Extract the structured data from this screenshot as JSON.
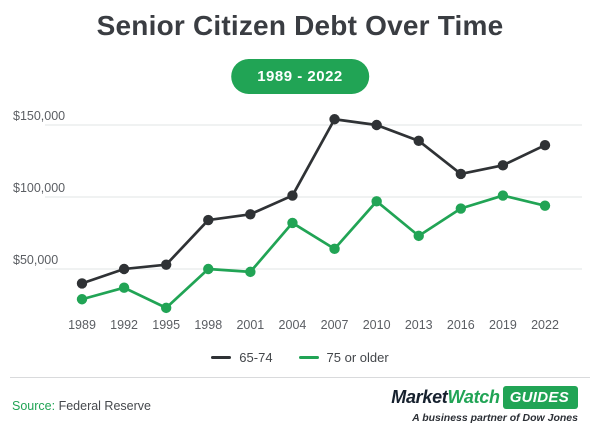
{
  "header": {
    "title": "Senior Citizen Debt Over Time",
    "badge": "1989 - 2022"
  },
  "chart_data": {
    "type": "line",
    "title": "Senior Citizen Debt Over Time",
    "subtitle": "1989 - 2022",
    "categories": [
      "1989",
      "1992",
      "1995",
      "1998",
      "2001",
      "2004",
      "2007",
      "2010",
      "2013",
      "2016",
      "2019",
      "2022"
    ],
    "series": [
      {
        "name": "65-74",
        "color": "#2f3235",
        "values": [
          40000,
          50000,
          53000,
          84000,
          88000,
          101000,
          154000,
          150000,
          139000,
          116000,
          122000,
          136000
        ]
      },
      {
        "name": "75 or older",
        "color": "#21a455",
        "values": [
          29000,
          37000,
          23000,
          50000,
          48000,
          82000,
          64000,
          97000,
          73000,
          92000,
          101000,
          94000
        ]
      }
    ],
    "y_ticks": [
      {
        "value": 150000,
        "label": "$150,000"
      },
      {
        "value": 100000,
        "label": "$100,000"
      },
      {
        "value": 50000,
        "label": "$50,000"
      }
    ],
    "ylim": [
      15000,
      165000
    ],
    "xlabel": "",
    "ylabel": "",
    "grid": "horizontal",
    "legend_position": "bottom"
  },
  "footer": {
    "source_label": "Source:",
    "source_text": "Federal Reserve",
    "logo": {
      "market": "Market",
      "watch": "Watch",
      "guides": "GUIDES",
      "tagline": "A business partner of Dow Jones"
    }
  },
  "colors": {
    "accent_green": "#21a455",
    "line_dark": "#2f3235",
    "title_text": "#3a3d42",
    "axis_text": "#5b5e63",
    "gridline": "#e8e9ea"
  }
}
